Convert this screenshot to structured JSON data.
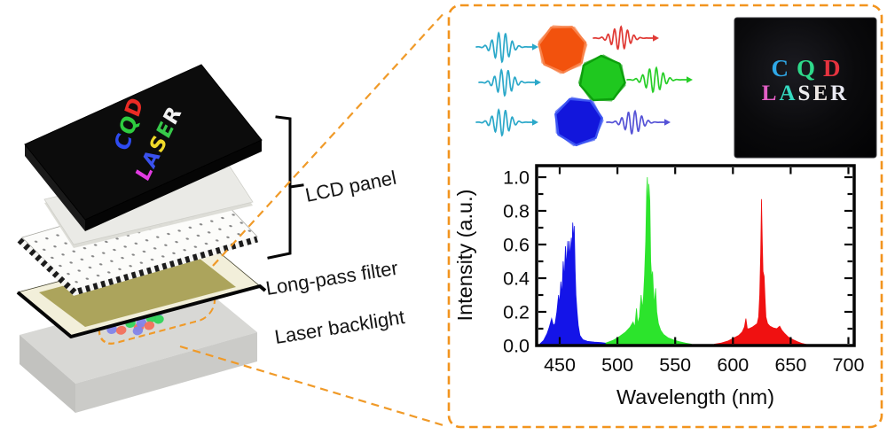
{
  "figure": {
    "background": "#ffffff"
  },
  "diagram": {
    "labels": {
      "lcd_panel": "LCD panel",
      "long_pass_filter": "Long-pass filter",
      "laser_backlight": "Laser backlight"
    },
    "screen_text": {
      "line1": [
        {
          "ch": "C",
          "color": "#2E4BF0"
        },
        {
          "ch": "Q",
          "color": "#2ECC3F"
        },
        {
          "ch": "D",
          "color": "#EA2B25"
        }
      ],
      "line2": [
        {
          "ch": "L",
          "color": "#E23BE2"
        },
        {
          "ch": "A",
          "color": "#3A52EE"
        },
        {
          "ch": "S",
          "color": "#EFD929"
        },
        {
          "ch": "E",
          "color": "#37C94A"
        },
        {
          "ch": "R",
          "color": "#F2F2F2"
        }
      ]
    },
    "laser_spot_colors": {
      "red": "#F3705C",
      "green": "#2FD45A",
      "blue": "#8284EA"
    },
    "callout_color": "#F09A28"
  },
  "right_panel": {
    "border_color": "#F2941E",
    "waves": [
      {
        "name": "pump-wave-1",
        "color": "#2BA8C9"
      },
      {
        "name": "pump-wave-2",
        "color": "#2BA8C9"
      },
      {
        "name": "pump-wave-3",
        "color": "#2BA8C9"
      },
      {
        "name": "red-emission-wave",
        "color": "#E03A35"
      },
      {
        "name": "green-emission-wave",
        "color": "#27CE27"
      },
      {
        "name": "blue-emission-wave",
        "color": "#5552D6"
      }
    ],
    "quantum_dots": [
      {
        "name": "orange-quantum-dot",
        "fill": "#F2520D",
        "stroke": "#F8824A"
      },
      {
        "name": "green-quantum-dot",
        "fill": "#1FC81F",
        "stroke": "#0DA00D"
      },
      {
        "name": "blue-quantum-dot",
        "fill": "#1216DC",
        "stroke": "#3C55F2"
      }
    ],
    "photo": {
      "background": "#09090B",
      "line1": [
        {
          "ch": "C",
          "color": "#2FA8E8"
        },
        {
          "ch": "Q",
          "color": "#2ED98A"
        },
        {
          "ch": "D",
          "color": "#E5333F"
        }
      ],
      "line2": [
        {
          "ch": "L",
          "color": "#E35FC5"
        },
        {
          "ch": "A",
          "color": "#35D9C0"
        },
        {
          "ch": "S",
          "color": "#EDEDEF"
        },
        {
          "ch": "E",
          "color": "#EDE7E3"
        },
        {
          "ch": "R",
          "color": "#E9E9F2"
        }
      ]
    }
  },
  "chart_data": {
    "type": "area",
    "title": "",
    "xlabel": "Wavelength (nm)",
    "ylabel": "Intensity (a.u.)",
    "xlim": [
      430,
      705
    ],
    "ylim": [
      0,
      1.04
    ],
    "grid": false,
    "legend": "none",
    "xticks": [
      "450",
      "500",
      "550",
      "600",
      "650",
      "700"
    ],
    "yticks": [
      "0.0",
      "0.2",
      "0.4",
      "0.6",
      "0.8",
      "1.0"
    ],
    "series": [
      {
        "name": "blue-laser-spectrum",
        "color": "#1414E8",
        "peak_nm": 461,
        "peak_intensity": 0.73,
        "points": [
          [
            433,
            0.01
          ],
          [
            436,
            0.03
          ],
          [
            439,
            0.07
          ],
          [
            441,
            0.11
          ],
          [
            443,
            0.16
          ],
          [
            444.5,
            0.12
          ],
          [
            446,
            0.13
          ],
          [
            447.5,
            0.2
          ],
          [
            449,
            0.3
          ],
          [
            450,
            0.25
          ],
          [
            451,
            0.38
          ],
          [
            452,
            0.3
          ],
          [
            453,
            0.5
          ],
          [
            454,
            0.4
          ],
          [
            455,
            0.59
          ],
          [
            456,
            0.47
          ],
          [
            457,
            0.62
          ],
          [
            457.6,
            0.5
          ],
          [
            458.3,
            0.62
          ],
          [
            459,
            0.52
          ],
          [
            460,
            0.64
          ],
          [
            460.6,
            0.54
          ],
          [
            461.3,
            0.73
          ],
          [
            462,
            0.62
          ],
          [
            462.6,
            0.71
          ],
          [
            463.3,
            0.45
          ],
          [
            464,
            0.3
          ],
          [
            465,
            0.2
          ],
          [
            466,
            0.12
          ],
          [
            467.5,
            0.06
          ],
          [
            470,
            0.035
          ],
          [
            474,
            0.025
          ],
          [
            480,
            0.02
          ],
          [
            486,
            0.018
          ],
          [
            492,
            0.012
          ]
        ]
      },
      {
        "name": "green-laser-spectrum",
        "color": "#2CE42C",
        "peak_nm": 526,
        "peak_intensity": 1.0,
        "points": [
          [
            490,
            0.015
          ],
          [
            496,
            0.03
          ],
          [
            502,
            0.055
          ],
          [
            507,
            0.08
          ],
          [
            511,
            0.11
          ],
          [
            513.5,
            0.14
          ],
          [
            515,
            0.11
          ],
          [
            516.5,
            0.22
          ],
          [
            517.5,
            0.13
          ],
          [
            519,
            0.17
          ],
          [
            520.5,
            0.3
          ],
          [
            521.5,
            0.22
          ],
          [
            522.5,
            0.28
          ],
          [
            523.5,
            0.42
          ],
          [
            524.5,
            0.62
          ],
          [
            525.3,
            0.92
          ],
          [
            525.9,
            1.0
          ],
          [
            526.5,
            0.8
          ],
          [
            527.2,
            0.96
          ],
          [
            528,
            0.86
          ],
          [
            528.8,
            0.5
          ],
          [
            529.6,
            0.4
          ],
          [
            530.4,
            0.44
          ],
          [
            531.2,
            0.32
          ],
          [
            532,
            0.24
          ],
          [
            533,
            0.34
          ],
          [
            534,
            0.2
          ],
          [
            535.5,
            0.13
          ],
          [
            537.5,
            0.09
          ],
          [
            540,
            0.065
          ],
          [
            544,
            0.045
          ],
          [
            549,
            0.032
          ],
          [
            554,
            0.022
          ],
          [
            559,
            0.014
          ],
          [
            564,
            0.008
          ]
        ]
      },
      {
        "name": "red-laser-spectrum",
        "color": "#F01111",
        "peak_nm": 625,
        "peak_intensity": 0.87,
        "points": [
          [
            584,
            0.008
          ],
          [
            590,
            0.015
          ],
          [
            596,
            0.028
          ],
          [
            601,
            0.045
          ],
          [
            605,
            0.06
          ],
          [
            608,
            0.08
          ],
          [
            610,
            0.11
          ],
          [
            611.2,
            0.16
          ],
          [
            612.4,
            0.1
          ],
          [
            614,
            0.1
          ],
          [
            617,
            0.11
          ],
          [
            619,
            0.12
          ],
          [
            621,
            0.13
          ],
          [
            622.3,
            0.17
          ],
          [
            623.2,
            0.3
          ],
          [
            624,
            0.55
          ],
          [
            624.7,
            0.87
          ],
          [
            625.4,
            0.62
          ],
          [
            626,
            0.44
          ],
          [
            627,
            0.41
          ],
          [
            627.8,
            0.28
          ],
          [
            628.6,
            0.17
          ],
          [
            630,
            0.13
          ],
          [
            632,
            0.115
          ],
          [
            635,
            0.105
          ],
          [
            638,
            0.1
          ],
          [
            640.5,
            0.115
          ],
          [
            642.5,
            0.09
          ],
          [
            645,
            0.07
          ],
          [
            648,
            0.05
          ],
          [
            652,
            0.035
          ],
          [
            656,
            0.022
          ],
          [
            660,
            0.012
          ],
          [
            664,
            0.006
          ]
        ]
      }
    ]
  }
}
